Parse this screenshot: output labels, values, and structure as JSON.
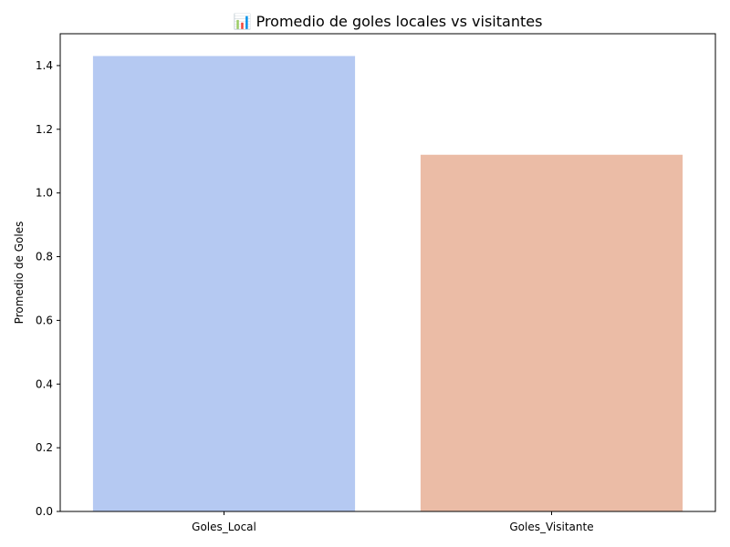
{
  "chart_data": {
    "type": "bar",
    "title": "📊 Promedio de goles locales vs visitantes",
    "xlabel": "",
    "ylabel": "Promedio de Goles",
    "categories": [
      "Goles_Local",
      "Goles_Visitante"
    ],
    "values": [
      1.43,
      1.12
    ],
    "colors": [
      "#b5c9f2",
      "#ebbca6"
    ],
    "ylim": [
      0,
      1.5
    ],
    "yticks": [
      0.0,
      0.2,
      0.4,
      0.6,
      0.8,
      1.0,
      1.2,
      1.4
    ],
    "ytick_labels": [
      "0.0",
      "0.2",
      "0.4",
      "0.6",
      "0.8",
      "1.0",
      "1.2",
      "1.4"
    ],
    "grid": false,
    "legend": "none"
  }
}
